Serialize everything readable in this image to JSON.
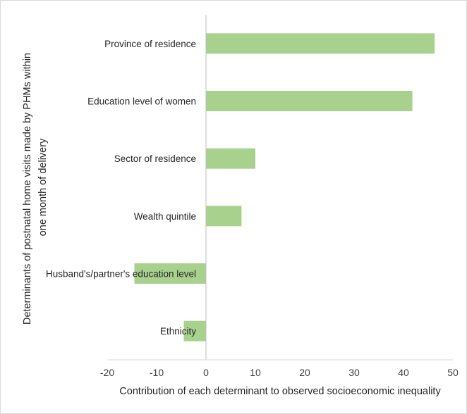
{
  "chart_data": {
    "type": "bar",
    "orientation": "horizontal",
    "title": "",
    "xlabel": "Contribution of each determinant to observed socioeconomic inequality",
    "ylabel_lines": [
      "Determinants of postnatal home visits made by PHMs within",
      "one month of delivery"
    ],
    "categories": [
      "Province of residence",
      "Education level of women",
      "Sector of residence",
      "Wealth quintile",
      "Husband's/partner's education level",
      "Ethnicity"
    ],
    "values": [
      46.3,
      41.8,
      10.0,
      7.2,
      -14.5,
      -4.5
    ],
    "xlim": [
      -20,
      50
    ],
    "xticks": [
      -20,
      -10,
      0,
      10,
      20,
      30,
      40,
      50
    ],
    "grid": false,
    "bar_color": "#a9d18e"
  }
}
